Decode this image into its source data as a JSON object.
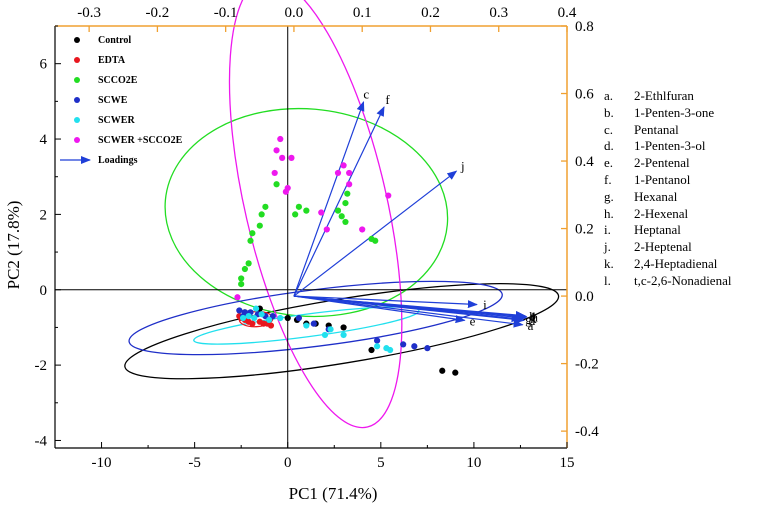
{
  "chart_data": {
    "type": "scatter",
    "subtype": "PCA biplot",
    "xlabel": "PC1 (71.4%)",
    "ylabel": "PC2 (17.8%)",
    "xlim": [
      -12.5,
      15
    ],
    "ylim": [
      -4.2,
      7
    ],
    "x_ticks": [
      "-10",
      "-5",
      "0",
      "5",
      "10",
      "15"
    ],
    "y_ticks": [
      "-4",
      "-2",
      "0",
      "2",
      "4",
      "6"
    ],
    "top_axis": {
      "min": -0.35,
      "max": 0.4,
      "ticks": [
        "-0.3",
        "-0.2",
        "-0.1",
        "0.0",
        "0.1",
        "0.2",
        "0.3",
        "0.4"
      ]
    },
    "right_axis": {
      "min": -0.45,
      "max": 0.8,
      "ticks": [
        "-0.4",
        "-0.2",
        "0.0",
        "0.2",
        "0.4",
        "0.6",
        "0.8"
      ]
    },
    "legend_position": "top-left",
    "series": [
      {
        "name": "Control",
        "color": "#000000",
        "points": [
          [
            -2.3,
            -0.6
          ],
          [
            -1.5,
            -0.5
          ],
          [
            -1.0,
            -0.8
          ],
          [
            0.0,
            -0.75
          ],
          [
            0.5,
            -0.8
          ],
          [
            1.0,
            -0.9
          ],
          [
            1.5,
            -0.9
          ],
          [
            2.2,
            -0.95
          ],
          [
            3.0,
            -1.0
          ],
          [
            4.5,
            -1.6
          ],
          [
            8.3,
            -2.15
          ],
          [
            9.0,
            -2.2
          ]
        ]
      },
      {
        "name": "EDTA",
        "color": "#e8171f",
        "points": [
          [
            -2.5,
            -0.75
          ],
          [
            -2.3,
            -0.8
          ],
          [
            -2.1,
            -0.85
          ],
          [
            -2.6,
            -0.7
          ],
          [
            -1.5,
            -0.85
          ],
          [
            -1.3,
            -0.9
          ],
          [
            -1.1,
            -0.9
          ],
          [
            -0.9,
            -0.95
          ],
          [
            -2.2,
            -0.7
          ],
          [
            -1.9,
            -0.9
          ]
        ]
      },
      {
        "name": "SCCO2E",
        "color": "#22dd22",
        "points": [
          [
            -2.5,
            0.15
          ],
          [
            -2.5,
            0.3
          ],
          [
            -2.3,
            0.55
          ],
          [
            -2.1,
            0.7
          ],
          [
            -2.0,
            1.3
          ],
          [
            -1.9,
            1.5
          ],
          [
            -1.5,
            1.7
          ],
          [
            -1.4,
            2.0
          ],
          [
            -1.2,
            2.2
          ],
          [
            -0.6,
            2.8
          ],
          [
            0.4,
            2.0
          ],
          [
            0.6,
            2.2
          ],
          [
            1.0,
            2.1
          ],
          [
            2.7,
            2.1
          ],
          [
            2.9,
            1.95
          ],
          [
            3.1,
            1.8
          ],
          [
            3.1,
            2.3
          ],
          [
            3.2,
            2.55
          ],
          [
            4.5,
            1.35
          ],
          [
            4.7,
            1.3
          ]
        ]
      },
      {
        "name": "SCWE",
        "color": "#1f2fc8",
        "points": [
          [
            -2.6,
            -0.55
          ],
          [
            -2.3,
            -0.6
          ],
          [
            -2.0,
            -0.6
          ],
          [
            -1.6,
            -0.65
          ],
          [
            -1.2,
            -0.7
          ],
          [
            -0.8,
            -0.7
          ],
          [
            0.6,
            -0.75
          ],
          [
            1.4,
            -0.9
          ],
          [
            2.2,
            -1.05
          ],
          [
            4.8,
            -1.35
          ],
          [
            6.2,
            -1.45
          ],
          [
            6.8,
            -1.5
          ],
          [
            7.5,
            -1.55
          ],
          [
            -2.4,
            -0.7
          ]
        ]
      },
      {
        "name": "SCWER",
        "color": "#22e0ee",
        "points": [
          [
            -2.4,
            -0.75
          ],
          [
            -2.1,
            -0.7
          ],
          [
            -1.8,
            -0.75
          ],
          [
            -1.7,
            -0.5
          ],
          [
            -1.4,
            -0.65
          ],
          [
            -1.0,
            -0.8
          ],
          [
            -0.4,
            -0.75
          ],
          [
            1.0,
            -0.95
          ],
          [
            2.0,
            -1.2
          ],
          [
            2.3,
            -1.05
          ],
          [
            3.0,
            -1.2
          ],
          [
            4.8,
            -1.5
          ],
          [
            5.3,
            -1.55
          ],
          [
            5.5,
            -1.6
          ]
        ]
      },
      {
        "name": "SCWER +SCCO2E",
        "color": "#ee18ee",
        "points": [
          [
            -0.7,
            3.1
          ],
          [
            -0.6,
            3.7
          ],
          [
            -0.4,
            4.0
          ],
          [
            -0.3,
            3.5
          ],
          [
            -0.1,
            2.6
          ],
          [
            0.0,
            2.7
          ],
          [
            0.2,
            3.5
          ],
          [
            2.7,
            3.1
          ],
          [
            3.0,
            3.3
          ],
          [
            3.3,
            3.1
          ],
          [
            3.3,
            2.8
          ],
          [
            5.4,
            2.5
          ],
          [
            1.8,
            2.05
          ],
          [
            2.1,
            1.6
          ],
          [
            4.0,
            1.6
          ],
          [
            -2.7,
            -0.2
          ]
        ]
      }
    ],
    "ellipses": [
      {
        "group": "Control",
        "color": "#000000",
        "cx": 2.9,
        "cy": -1.1,
        "rx": 11.8,
        "ry": 0.85,
        "angle_deg": -9.3
      },
      {
        "group": "SCCO2E",
        "color": "#22dd22",
        "cx": 1.0,
        "cy": 2.05,
        "rx": 7.6,
        "ry": 2.75,
        "angle_deg": 5
      },
      {
        "group": "SCWE",
        "color": "#1f2fc8",
        "cx": 1.5,
        "cy": -0.75,
        "rx": 10.1,
        "ry": 0.75,
        "angle_deg": -7.2
      },
      {
        "group": "SCWER",
        "color": "#22e0ee",
        "cx": 1.0,
        "cy": -0.95,
        "rx": 6.1,
        "ry": 0.3,
        "angle_deg": -7.5
      },
      {
        "group": "EDTA",
        "color": "#e8171f",
        "cx": -1.7,
        "cy": -0.78,
        "rx": 0.9,
        "ry": 0.2,
        "angle_deg": -3
      },
      {
        "group": "SCWER +SCCO2E",
        "color": "#ee18ee",
        "cx": 1.5,
        "cy": 2.3,
        "rx": 3.8,
        "ry": 6.1,
        "angle_deg": -13
      }
    ],
    "loadings_legend": "Loadings",
    "loadings": [
      {
        "label": "a",
        "x": 0.335,
        "y": -0.085
      },
      {
        "label": "b",
        "x": 0.338,
        "y": -0.058
      },
      {
        "label": "c",
        "x": 0.102,
        "y": 0.575
      },
      {
        "label": "d",
        "x": 0.337,
        "y": -0.072
      },
      {
        "label": "e",
        "x": 0.25,
        "y": -0.072
      },
      {
        "label": "f",
        "x": 0.132,
        "y": 0.56
      },
      {
        "label": "g",
        "x": 0.332,
        "y": -0.068
      },
      {
        "label": "h",
        "x": 0.341,
        "y": -0.062
      },
      {
        "label": "i",
        "x": 0.268,
        "y": -0.025
      },
      {
        "label": "j",
        "x": 0.238,
        "y": 0.37
      },
      {
        "label": "k",
        "x": 0.339,
        "y": -0.065
      },
      {
        "label": "l",
        "x": 0.34,
        "y": -0.06
      }
    ]
  },
  "variable_key": [
    {
      "letter": "a.",
      "name": "2-Ethlfuran"
    },
    {
      "letter": "b.",
      "name": "1-Penten-3-one"
    },
    {
      "letter": "c.",
      "name": "Pentanal"
    },
    {
      "letter": "d.",
      "name": "1-Penten-3-ol"
    },
    {
      "letter": "e.",
      "name": "2-Pentenal"
    },
    {
      "letter": "f.",
      "name": "1-Pentanol"
    },
    {
      "letter": "g.",
      "name": "Hexanal"
    },
    {
      "letter": "h.",
      "name": "2-Hexenal"
    },
    {
      "letter": "i.",
      "name": "Heptanal"
    },
    {
      "letter": "j.",
      "name": "2-Heptenal"
    },
    {
      "letter": "k.",
      "name": "2,4-Heptadienal"
    },
    {
      "letter": "l.",
      "name": "t,c-2,6-Nonadienal"
    }
  ],
  "colors": {
    "secondary_axis": "#f0a030",
    "loading_arrow": "#1f3fd8",
    "axis": "#000000"
  }
}
